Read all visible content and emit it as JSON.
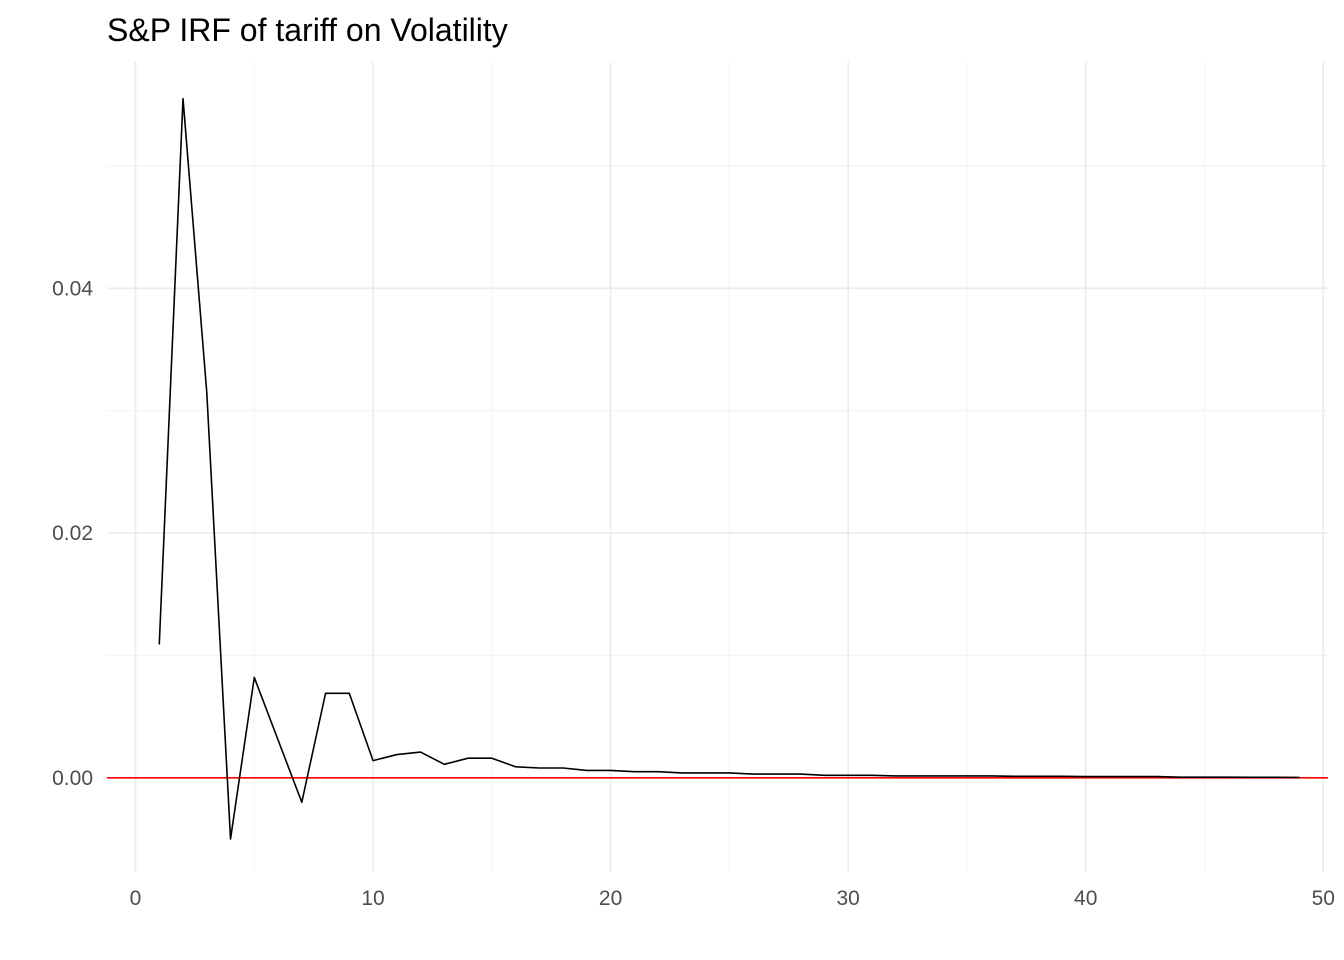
{
  "chart_data": {
    "type": "line",
    "title": "S&P IRF of tariff on Volatility",
    "xlabel": "",
    "ylabel": "",
    "xlim": [
      -1.2,
      50.2
    ],
    "ylim": [
      -0.0077,
      0.0585
    ],
    "x_ticks": [
      0,
      10,
      20,
      30,
      40,
      50
    ],
    "x_tick_labels": [
      "0",
      "10",
      "20",
      "30",
      "40",
      "50"
    ],
    "x_minor_ticks": [
      5,
      15,
      25,
      35,
      45
    ],
    "y_ticks": [
      0.0,
      0.02,
      0.04
    ],
    "y_tick_labels": [
      "0.00",
      "0.02",
      "0.04"
    ],
    "y_minor_ticks": [
      -0.01,
      0.01,
      0.03,
      0.05
    ],
    "grid": true,
    "reference_line": {
      "y": 0,
      "color": "#ff0000"
    },
    "series": [
      {
        "color": "#000000",
        "x": [
          1,
          2,
          3,
          4,
          5,
          6,
          7,
          8,
          9,
          10,
          11,
          12,
          13,
          14,
          15,
          16,
          17,
          18,
          19,
          20,
          21,
          22,
          23,
          24,
          25,
          26,
          27,
          28,
          29,
          30,
          31,
          32,
          33,
          34,
          35,
          36,
          37,
          38,
          39,
          40,
          41,
          42,
          43,
          44,
          45,
          46,
          47,
          48,
          49
        ],
        "values": [
          0.0109,
          0.0555,
          0.0315,
          -0.005,
          0.0082,
          0.0031,
          -0.002,
          0.0069,
          0.0069,
          0.0014,
          0.0019,
          0.0021,
          0.0011,
          0.0016,
          0.0016,
          0.0009,
          0.0008,
          0.0008,
          0.0006,
          0.0006,
          0.0005,
          0.0005,
          0.0004,
          0.0004,
          0.0004,
          0.0003,
          0.0003,
          0.0003,
          0.0002,
          0.0002,
          0.0002,
          0.00015,
          0.00015,
          0.00015,
          0.00015,
          0.00015,
          0.00012,
          0.00012,
          0.00012,
          0.0001,
          0.0001,
          0.0001,
          0.0001,
          5e-05,
          5e-05,
          5e-05,
          4e-05,
          4e-05,
          3e-05
        ]
      }
    ]
  }
}
